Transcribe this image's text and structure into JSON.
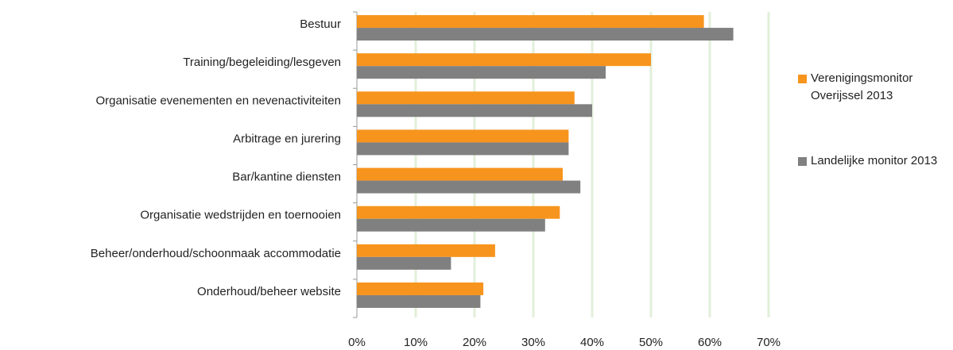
{
  "chart_data": {
    "type": "hbar",
    "categories": [
      "Bestuur",
      "Training/begeleiding/lesgeven",
      "Organisatie evenementen en nevenactiviteiten",
      "Arbitrage en jurering",
      "Bar/kantine diensten",
      "Organisatie wedstrijden en toernooien",
      "Beheer/onderhoud/schoonmaak accommodatie",
      "Onderhoud/beheer website"
    ],
    "series": [
      {
        "name": "Verenigingsmonitor Overijssel 2013",
        "color": "#f7941d",
        "values": [
          59,
          50,
          37,
          36,
          35,
          34.5,
          23.5,
          21.5
        ]
      },
      {
        "name": "Landelijke monitor 2013",
        "color": "#808080",
        "values": [
          64,
          42.3,
          40,
          36,
          38,
          32,
          16,
          21
        ]
      }
    ],
    "xlim": [
      0,
      70
    ],
    "xticks": [
      {
        "value": 0,
        "label": "0%"
      },
      {
        "value": 10,
        "label": "10%"
      },
      {
        "value": 20,
        "label": "20%"
      },
      {
        "value": 30,
        "label": "30%"
      },
      {
        "value": 40,
        "label": "40%"
      },
      {
        "value": 50,
        "label": "50%"
      },
      {
        "value": 60,
        "label": "60%"
      },
      {
        "value": 70,
        "label": "70%"
      }
    ],
    "grid": true,
    "legend": "right"
  }
}
